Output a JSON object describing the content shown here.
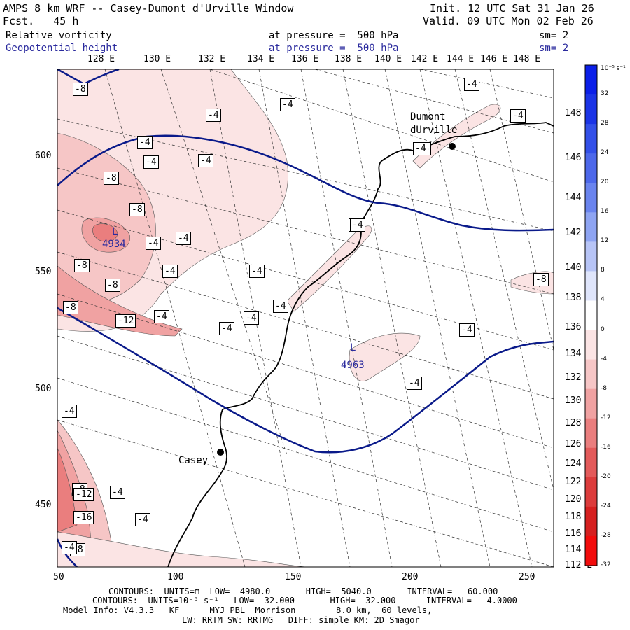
{
  "header": {
    "title": "AMPS 8 km WRF -- Casey-Dumont d'Urville Window",
    "fcst": "Fcst.   45 h",
    "init": "Init. 12 UTC Sat 31 Jan 26",
    "valid": "Valid. 09 UTC Mon 02 Feb 26",
    "field1": {
      "name": "Relative vorticity",
      "level": "at pressure =  500 hPa",
      "sm": "sm= 2"
    },
    "field2": {
      "name": "Geopotential height",
      "level": "at pressure =  500 hPa",
      "sm": "sm= 2"
    }
  },
  "top_lon_labels": [
    "128 E",
    "130 E",
    "132 E",
    "134 E",
    "136 E",
    "138 E",
    "140 E",
    "142 E",
    "144 E",
    "146 E",
    "148 E"
  ],
  "right_lon_labels": [
    "148 E",
    "146 E",
    "144 E",
    "142 E",
    "140 E",
    "138 E",
    "136 E",
    "134 E",
    "132 E",
    "130 E",
    "128 E",
    "126 E",
    "124 E",
    "122 E",
    "120 E",
    "118 E",
    "116 E",
    "114 E",
    "112 E"
  ],
  "x_ticks": [
    "50",
    "100",
    "150",
    "200",
    "250"
  ],
  "y_ticks": [
    "600",
    "550",
    "500",
    "450"
  ],
  "places": {
    "dumont": "Dumont\ndUrville",
    "casey": "Casey"
  },
  "lows": [
    {
      "label": "L",
      "value": "4934"
    },
    {
      "label": "L",
      "value": "4963"
    }
  ],
  "vort_labels": [
    "-8",
    "-8",
    "-8",
    "-8",
    "-8",
    "-8",
    "-8",
    "-8",
    "-8",
    "-12",
    "-12",
    "-16",
    "-4",
    "-4",
    "-4",
    "-4",
    "-4",
    "-4",
    "-4",
    "-4",
    "-4",
    "-4",
    "-4",
    "-4",
    "-4",
    "-4",
    "-4",
    "-4",
    "-4",
    "-4",
    "-4",
    "-4",
    "-4",
    "-4",
    "-4",
    "-4",
    "-4",
    "-4"
  ],
  "colorbar": {
    "unit": "10⁻⁵ s⁻¹",
    "labels": [
      "32",
      "28",
      "24",
      "20",
      "16",
      "12",
      "8",
      "4",
      "0",
      "-4",
      "-8",
      "-12",
      "-16",
      "-20",
      "-24",
      "-28",
      "-32"
    ],
    "colors": [
      "#0b1fe8",
      "#1b34e6",
      "#3350e8",
      "#4d68ea",
      "#6a84ee",
      "#8ea4f2",
      "#b7c4f6",
      "#dfe5fb",
      "#ffffff",
      "#fbe4e4",
      "#f6c6c6",
      "#f0a2a2",
      "#ea7e7e",
      "#e35a5a",
      "#dc3c3c",
      "#d62020",
      "#f20c0c"
    ]
  },
  "footer": {
    "line1": "CONTOURS:  UNITS=m  LOW=  4980.0       HIGH=  5040.0       INTERVAL=   60.000",
    "line2": "CONTOURS:  UNITS=10⁻⁵ s⁻¹   LOW= -32.000       HIGH=  32.000      INTERVAL=   4.0000",
    "line3": "Model Info: V4.3.3   KF      MYJ PBL  Morrison        8.0 km,  60 levels,",
    "line4": "LW: RRTM SW: RRTMG   DIFF: simple KM: 2D Smagor"
  },
  "colors": {
    "height_contour": "#0a1a8a",
    "text_blue": "#2b2b9e"
  }
}
